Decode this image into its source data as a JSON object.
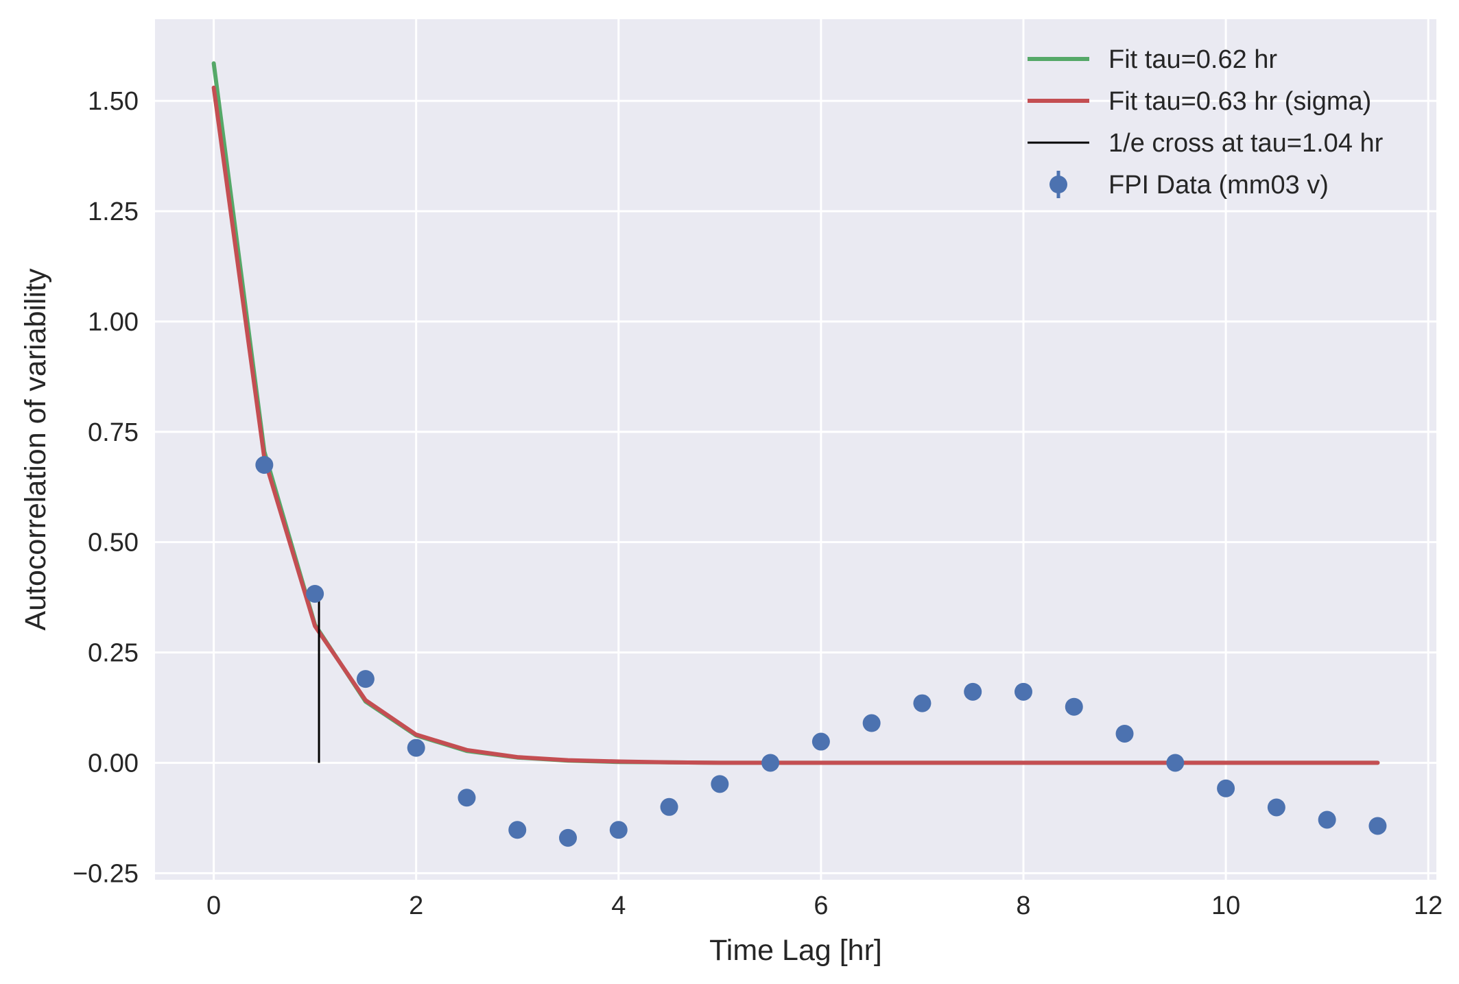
{
  "chart_data": {
    "type": "line",
    "title": "",
    "xlabel": "Time Lag [hr]",
    "ylabel": "Autocorrelation of variability",
    "xlim": [
      -0.58,
      12.08
    ],
    "ylim": [
      -0.265,
      1.685
    ],
    "xticks": [
      0,
      2,
      4,
      6,
      8,
      10,
      12
    ],
    "xtick_labels": [
      "0",
      "2",
      "4",
      "6",
      "8",
      "10",
      "12"
    ],
    "yticks": [
      -0.25,
      0.0,
      0.25,
      0.5,
      0.75,
      1.0,
      1.25,
      1.5
    ],
    "ytick_labels": [
      "−0.25",
      "0.00",
      "0.25",
      "0.50",
      "0.75",
      "1.00",
      "1.25",
      "1.50"
    ],
    "grid": true,
    "legend_position": "top-right",
    "colors": {
      "background": "#eaeaf2",
      "grid": "#ffffff",
      "fit_green": "#55a868",
      "fit_red": "#c44e52",
      "vline": "#000000",
      "data": "#4c72b0"
    },
    "series": [
      {
        "name": "Fit tau=0.62 hr",
        "kind": "line",
        "color": "#55a868",
        "x": [
          0,
          0.5,
          1,
          1.5,
          2,
          2.5,
          3,
          3.5,
          4,
          4.5,
          5,
          5.5,
          6,
          6.5,
          7,
          7.5,
          8,
          8.5,
          9,
          9.5,
          10,
          10.5,
          11,
          11.5
        ],
        "y": [
          1.585,
          0.705,
          0.313,
          0.139,
          0.062,
          0.027,
          0.012,
          0.005,
          0.002,
          0.001,
          0.0,
          0.0,
          0.0,
          0.0,
          0.0,
          0.0,
          0.0,
          0.0,
          0.0,
          0.0,
          0.0,
          0.0,
          0.0,
          0.0
        ]
      },
      {
        "name": "Fit tau=0.63 hr (sigma)",
        "kind": "line",
        "color": "#c44e52",
        "x": [
          0,
          0.5,
          1,
          1.5,
          2,
          2.5,
          3,
          3.5,
          4,
          4.5,
          5,
          5.5,
          6,
          6.5,
          7,
          7.5,
          8,
          8.5,
          9,
          9.5,
          10,
          10.5,
          11,
          11.5
        ],
        "y": [
          1.53,
          0.69,
          0.31,
          0.142,
          0.064,
          0.029,
          0.013,
          0.006,
          0.003,
          0.001,
          0.0,
          0.0,
          0.0,
          0.0,
          0.0,
          0.0,
          0.0,
          0.0,
          0.0,
          0.0,
          0.0,
          0.0,
          0.0,
          0.0
        ]
      },
      {
        "name": "1/e cross at tau=1.04 hr",
        "kind": "vline",
        "color": "#000000",
        "x": 1.04,
        "y": [
          0.0,
          0.368
        ]
      },
      {
        "name": "FPI Data (mm03 v)",
        "kind": "errorbar",
        "color": "#4c72b0",
        "x": [
          0.5,
          1,
          1.5,
          2,
          2.5,
          3,
          3.5,
          4,
          4.5,
          5,
          5.5,
          6,
          6.5,
          7,
          7.5,
          8,
          8.5,
          9,
          9.5,
          10,
          10.5,
          11,
          11.5
        ],
        "y": [
          0.675,
          0.383,
          0.19,
          0.034,
          -0.079,
          -0.152,
          -0.17,
          -0.152,
          -0.1,
          -0.048,
          0.0,
          0.048,
          0.09,
          0.135,
          0.161,
          0.161,
          0.127,
          0.066,
          0.0,
          -0.058,
          -0.101,
          -0.129,
          -0.143
        ]
      }
    ]
  }
}
